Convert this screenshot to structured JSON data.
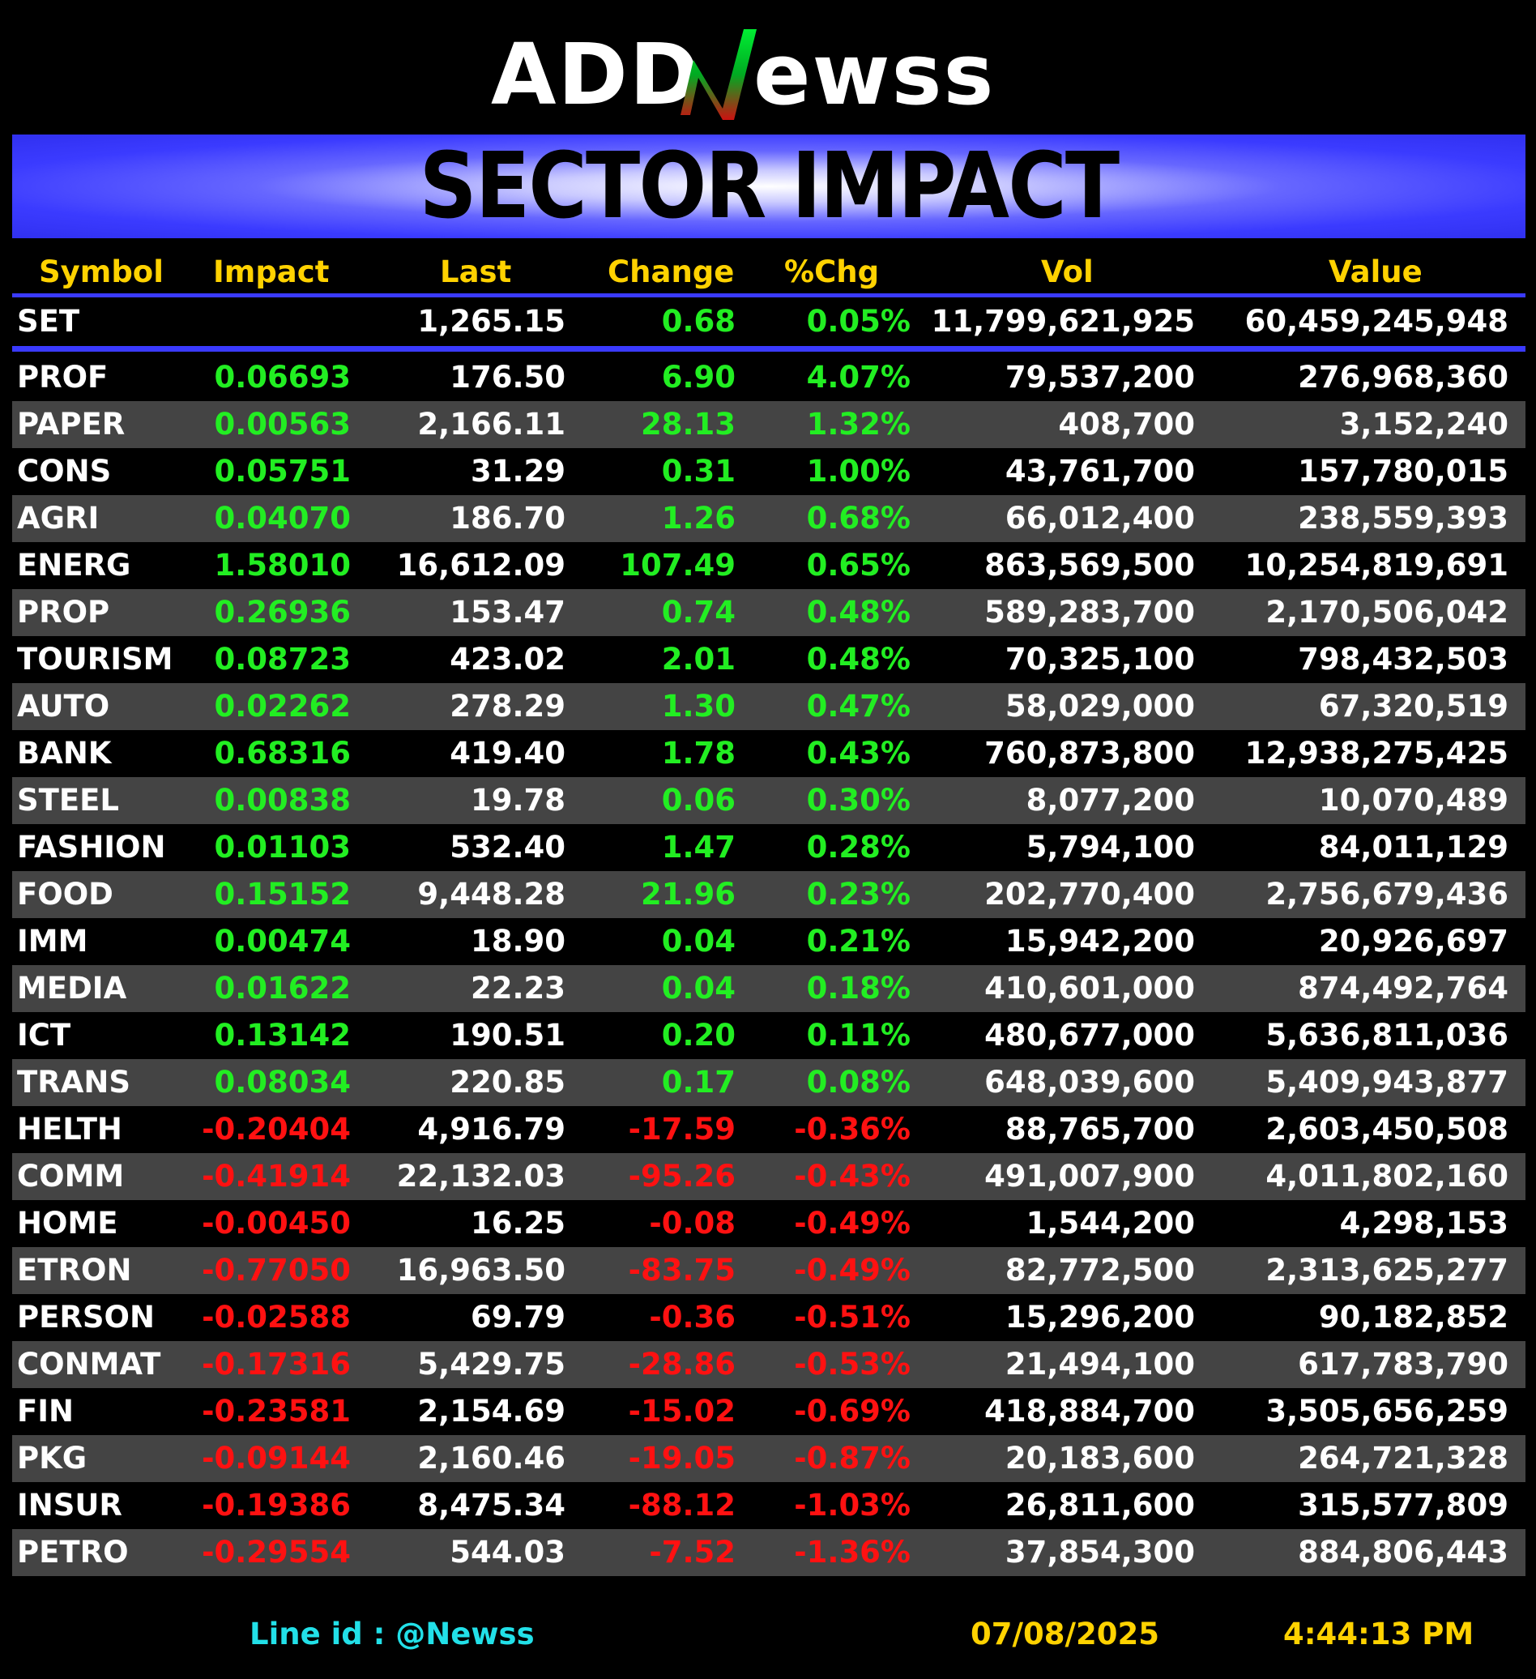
{
  "brand": {
    "logo_text": "ADDNewss"
  },
  "banner": {
    "title": "SECTOR IMPACT"
  },
  "headers": {
    "symbol": "Symbol",
    "impact": "Impact",
    "last": "Last",
    "change": "Change",
    "pct": "%Chg",
    "vol": "Vol",
    "value": "Value"
  },
  "index_row": {
    "symbol": "SET",
    "impact": "",
    "last": "1,265.15",
    "change": "0.68",
    "pct": "0.05%",
    "vol": "11,799,621,925",
    "value": "60,459,245,948"
  },
  "rows": [
    {
      "symbol": "PROF",
      "impact": "0.06693",
      "last": "176.50",
      "change": "6.90",
      "pct": "4.07%",
      "vol": "79,537,200",
      "value": "276,968,360",
      "dir": "pos"
    },
    {
      "symbol": "PAPER",
      "impact": "0.00563",
      "last": "2,166.11",
      "change": "28.13",
      "pct": "1.32%",
      "vol": "408,700",
      "value": "3,152,240",
      "dir": "pos"
    },
    {
      "symbol": "CONS",
      "impact": "0.05751",
      "last": "31.29",
      "change": "0.31",
      "pct": "1.00%",
      "vol": "43,761,700",
      "value": "157,780,015",
      "dir": "pos"
    },
    {
      "symbol": "AGRI",
      "impact": "0.04070",
      "last": "186.70",
      "change": "1.26",
      "pct": "0.68%",
      "vol": "66,012,400",
      "value": "238,559,393",
      "dir": "pos"
    },
    {
      "symbol": "ENERG",
      "impact": "1.58010",
      "last": "16,612.09",
      "change": "107.49",
      "pct": "0.65%",
      "vol": "863,569,500",
      "value": "10,254,819,691",
      "dir": "pos"
    },
    {
      "symbol": "PROP",
      "impact": "0.26936",
      "last": "153.47",
      "change": "0.74",
      "pct": "0.48%",
      "vol": "589,283,700",
      "value": "2,170,506,042",
      "dir": "pos"
    },
    {
      "symbol": "TOURISM",
      "impact": "0.08723",
      "last": "423.02",
      "change": "2.01",
      "pct": "0.48%",
      "vol": "70,325,100",
      "value": "798,432,503",
      "dir": "pos"
    },
    {
      "symbol": "AUTO",
      "impact": "0.02262",
      "last": "278.29",
      "change": "1.30",
      "pct": "0.47%",
      "vol": "58,029,000",
      "value": "67,320,519",
      "dir": "pos"
    },
    {
      "symbol": "BANK",
      "impact": "0.68316",
      "last": "419.40",
      "change": "1.78",
      "pct": "0.43%",
      "vol": "760,873,800",
      "value": "12,938,275,425",
      "dir": "pos"
    },
    {
      "symbol": "STEEL",
      "impact": "0.00838",
      "last": "19.78",
      "change": "0.06",
      "pct": "0.30%",
      "vol": "8,077,200",
      "value": "10,070,489",
      "dir": "pos"
    },
    {
      "symbol": "FASHION",
      "impact": "0.01103",
      "last": "532.40",
      "change": "1.47",
      "pct": "0.28%",
      "vol": "5,794,100",
      "value": "84,011,129",
      "dir": "pos"
    },
    {
      "symbol": "FOOD",
      "impact": "0.15152",
      "last": "9,448.28",
      "change": "21.96",
      "pct": "0.23%",
      "vol": "202,770,400",
      "value": "2,756,679,436",
      "dir": "pos"
    },
    {
      "symbol": "IMM",
      "impact": "0.00474",
      "last": "18.90",
      "change": "0.04",
      "pct": "0.21%",
      "vol": "15,942,200",
      "value": "20,926,697",
      "dir": "pos"
    },
    {
      "symbol": "MEDIA",
      "impact": "0.01622",
      "last": "22.23",
      "change": "0.04",
      "pct": "0.18%",
      "vol": "410,601,000",
      "value": "874,492,764",
      "dir": "pos"
    },
    {
      "symbol": "ICT",
      "impact": "0.13142",
      "last": "190.51",
      "change": "0.20",
      "pct": "0.11%",
      "vol": "480,677,000",
      "value": "5,636,811,036",
      "dir": "pos"
    },
    {
      "symbol": "TRANS",
      "impact": "0.08034",
      "last": "220.85",
      "change": "0.17",
      "pct": "0.08%",
      "vol": "648,039,600",
      "value": "5,409,943,877",
      "dir": "pos"
    },
    {
      "symbol": "HELTH",
      "impact": "-0.20404",
      "last": "4,916.79",
      "change": "-17.59",
      "pct": "-0.36%",
      "vol": "88,765,700",
      "value": "2,603,450,508",
      "dir": "neg"
    },
    {
      "symbol": "COMM",
      "impact": "-0.41914",
      "last": "22,132.03",
      "change": "-95.26",
      "pct": "-0.43%",
      "vol": "491,007,900",
      "value": "4,011,802,160",
      "dir": "neg"
    },
    {
      "symbol": "HOME",
      "impact": "-0.00450",
      "last": "16.25",
      "change": "-0.08",
      "pct": "-0.49%",
      "vol": "1,544,200",
      "value": "4,298,153",
      "dir": "neg"
    },
    {
      "symbol": "ETRON",
      "impact": "-0.77050",
      "last": "16,963.50",
      "change": "-83.75",
      "pct": "-0.49%",
      "vol": "82,772,500",
      "value": "2,313,625,277",
      "dir": "neg"
    },
    {
      "symbol": "PERSON",
      "impact": "-0.02588",
      "last": "69.79",
      "change": "-0.36",
      "pct": "-0.51%",
      "vol": "15,296,200",
      "value": "90,182,852",
      "dir": "neg"
    },
    {
      "symbol": "CONMAT",
      "impact": "-0.17316",
      "last": "5,429.75",
      "change": "-28.86",
      "pct": "-0.53%",
      "vol": "21,494,100",
      "value": "617,783,790",
      "dir": "neg"
    },
    {
      "symbol": "FIN",
      "impact": "-0.23581",
      "last": "2,154.69",
      "change": "-15.02",
      "pct": "-0.69%",
      "vol": "418,884,700",
      "value": "3,505,656,259",
      "dir": "neg"
    },
    {
      "symbol": "PKG",
      "impact": "-0.09144",
      "last": "2,160.46",
      "change": "-19.05",
      "pct": "-0.87%",
      "vol": "20,183,600",
      "value": "264,721,328",
      "dir": "neg"
    },
    {
      "symbol": "INSUR",
      "impact": "-0.19386",
      "last": "8,475.34",
      "change": "-88.12",
      "pct": "-1.03%",
      "vol": "26,811,600",
      "value": "315,577,809",
      "dir": "neg"
    },
    {
      "symbol": "PETRO",
      "impact": "-0.29554",
      "last": "544.03",
      "change": "-7.52",
      "pct": "-1.36%",
      "vol": "37,854,300",
      "value": "884,806,443",
      "dir": "neg"
    }
  ],
  "footer": {
    "line_id": "Line id  : @Newss",
    "date": "07/08/2025",
    "time": "4:44:13 PM"
  },
  "colors": {
    "positive": "#22ee22",
    "negative": "#ff1111",
    "header": "#ffd200",
    "accent": "#3a3aff"
  }
}
